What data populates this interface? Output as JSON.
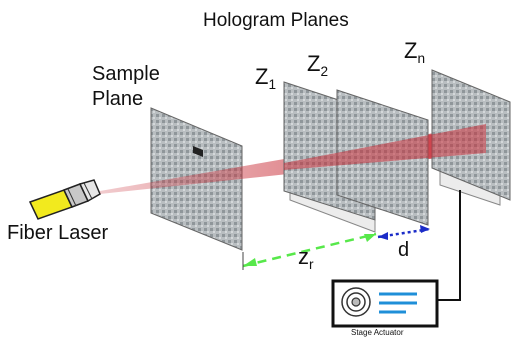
{
  "title": "Hologram Planes",
  "sample_plane": {
    "line1": "Sample",
    "line2": "Plane"
  },
  "fiber_laser": "Fiber Laser",
  "planes": {
    "z1": {
      "base": "Z",
      "sub": "1"
    },
    "z2": {
      "base": "Z",
      "sub": "2"
    },
    "zn": {
      "base": "Z",
      "sub": "n"
    }
  },
  "zr": {
    "base": "z",
    "sub": "r"
  },
  "d": "d",
  "actuator": "Stage Actuator",
  "colors": {
    "beam": "#c9303a",
    "fiber_body": "#f2ea1e",
    "zr_arrow": "#57e84a",
    "d_arrow": "#1b2cc8",
    "actuator_bar": "#1f8fd8",
    "plate": "#9aa0a4"
  }
}
